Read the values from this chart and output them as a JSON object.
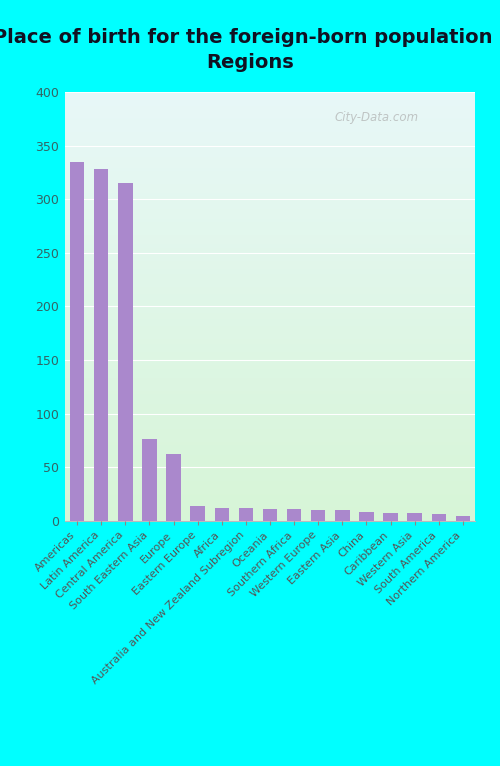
{
  "title": "Place of birth for the foreign-born population -\nRegions",
  "categories": [
    "Americas",
    "Latin America",
    "Central America",
    "South Eastern Asia",
    "Europe",
    "Eastern Europe",
    "Africa",
    "Australia and New Zealand Subregion",
    "Oceania",
    "Southern Africa",
    "Western Europe",
    "Eastern Asia",
    "China",
    "Caribbean",
    "Western Asia",
    "South America",
    "Northern America"
  ],
  "values": [
    335,
    328,
    315,
    76,
    62,
    14,
    12,
    12,
    11,
    11,
    10,
    10,
    8,
    7,
    7,
    6,
    5
  ],
  "bar_color": "#aa88cc",
  "ylim": [
    0,
    400
  ],
  "yticks": [
    0,
    50,
    100,
    150,
    200,
    250,
    300,
    350,
    400
  ],
  "background_top": "#e8f8f8",
  "background_bottom": "#dff5df",
  "outer_bg": "#00ffff",
  "title_fontsize": 14,
  "tick_fontsize": 9,
  "watermark": "City-Data.com"
}
